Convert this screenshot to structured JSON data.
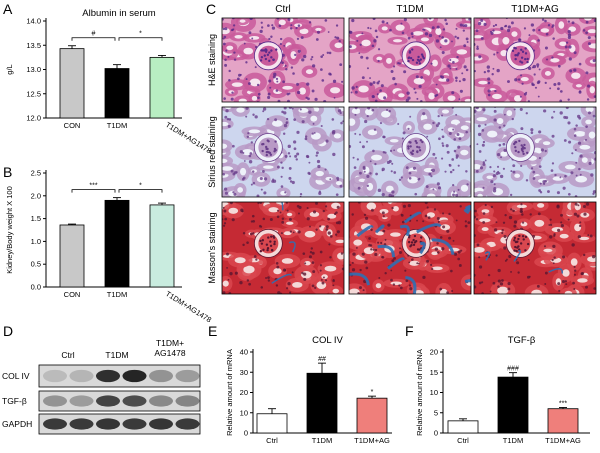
{
  "panel_letters": {
    "A": "A",
    "B": "B",
    "C": "C",
    "D": "D",
    "E": "E",
    "F": "F"
  },
  "chart_data": [
    {
      "panel": "A",
      "type": "bar",
      "title": "Albumin in serum",
      "ylabel": "g/L",
      "xlabel": "",
      "categories": [
        "CON",
        "T1DM",
        "T1DM+AG1478"
      ],
      "values": [
        13.43,
        13.02,
        13.25
      ],
      "errors": [
        0.06,
        0.08,
        0.04
      ],
      "ylim": [
        12.0,
        14.0
      ],
      "yticks": [
        "12.0",
        "12.5",
        "13.0",
        "13.5",
        "14.0"
      ],
      "colors": [
        "#c8c8c8",
        "#000000",
        "#b8eec2"
      ],
      "significance": [
        {
          "from": 0,
          "to": 1,
          "label": "#"
        },
        {
          "from": 1,
          "to": 2,
          "label": "*"
        }
      ]
    },
    {
      "panel": "B",
      "type": "bar",
      "title": "",
      "ylabel": "Kidney/Body weight X 100",
      "xlabel": "",
      "categories": [
        "CON",
        "T1DM",
        "T1DM+AG1478"
      ],
      "values": [
        1.36,
        1.9,
        1.8
      ],
      "errors": [
        0.02,
        0.06,
        0.04
      ],
      "ylim": [
        0.0,
        2.5
      ],
      "yticks": [
        "0.0",
        "0.5",
        "1.0",
        "1.5",
        "2.0",
        "2.5"
      ],
      "colors": [
        "#c8c8c8",
        "#000000",
        "#c9ecdf"
      ],
      "significance": [
        {
          "from": 0,
          "to": 1,
          "label": "***"
        },
        {
          "from": 1,
          "to": 2,
          "label": "*"
        }
      ]
    },
    {
      "panel": "E",
      "type": "bar",
      "title": "COL IV",
      "ylabel": "Relative amount of mRNA",
      "xlabel": "",
      "categories": [
        "Ctrl",
        "T1DM",
        "T1DM+AG"
      ],
      "values": [
        9.5,
        29.5,
        17.2
      ],
      "errors": [
        2.5,
        5.0,
        1.0
      ],
      "ylim": [
        0,
        40
      ],
      "yticks": [
        "0",
        "10",
        "20",
        "30",
        "40"
      ],
      "colors": [
        "#ffffff",
        "#000000",
        "#ef7f7b"
      ],
      "bar_labels": [
        "",
        "##",
        "*"
      ]
    },
    {
      "panel": "F",
      "type": "bar",
      "title": "TGF-β",
      "ylabel": "Relative amount of mRNA",
      "xlabel": "",
      "categories": [
        "Ctrl",
        "T1DM",
        "T1DM+AG"
      ],
      "values": [
        3.0,
        13.8,
        6.0
      ],
      "errors": [
        0.5,
        1.1,
        0.3
      ],
      "ylim": [
        0,
        20
      ],
      "yticks": [
        "0",
        "5",
        "10",
        "15",
        "20"
      ],
      "colors": [
        "#ffffff",
        "#000000",
        "#ef7f7b"
      ],
      "bar_labels": [
        "",
        "###",
        "***"
      ]
    }
  ],
  "histology": {
    "columns": [
      "Ctrl",
      "T1DM",
      "T1DM+AG"
    ],
    "rows": [
      "H&E staining",
      "Sirius red staining",
      "Masson's staining"
    ],
    "stain_colors": {
      "he": {
        "bg": "#e4a4c6",
        "tubule": "#c95b9b",
        "nuclei": "#5b2a8a",
        "lumen": "#f6e4ee"
      },
      "sirius": {
        "bg": "#cdd6ee",
        "tubule": "#b99ac6",
        "nuclei": "#6a3f8c",
        "lumen": "#eef1f9"
      },
      "masson": {
        "bg": "#c52a34",
        "tubule": "#d9474f",
        "nuclei": "#5a1530",
        "lumen": "#f4d9d8",
        "fibrosis": "#2f6fb3"
      }
    }
  },
  "western_blot": {
    "lanes": [
      "Ctrl",
      "T1DM",
      "T1DM+\nAG1478"
    ],
    "lane_lines": [
      "Ctrl",
      "T1DM",
      "T1DM+",
      "AG1478"
    ],
    "bands": [
      "COL IV",
      "TGF-β",
      "GAPDH"
    ]
  }
}
